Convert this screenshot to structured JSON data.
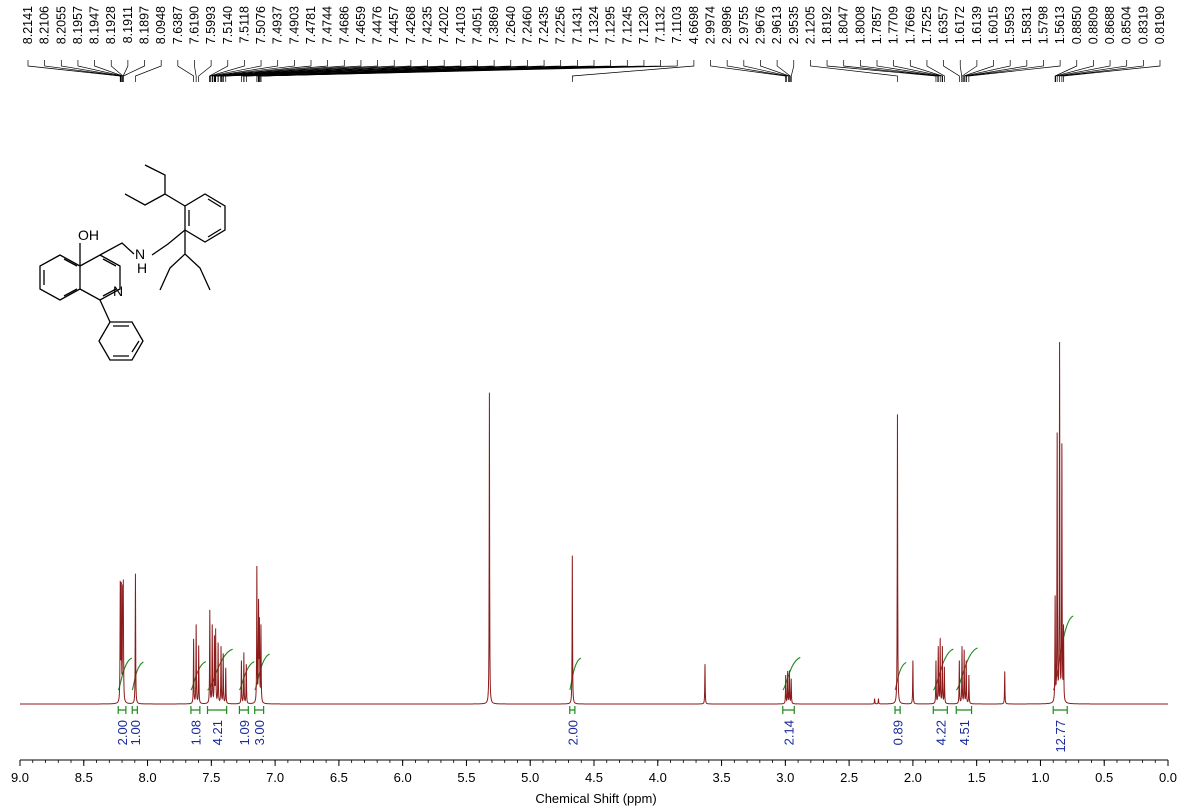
{
  "chart_data": {
    "type": "line",
    "xlabel": "Chemical Shift (ppm)",
    "ylabel": "",
    "xlim": [
      9.0,
      0.0
    ],
    "x_ticks": [
      "9.0",
      "8.5",
      "8.0",
      "7.5",
      "7.0",
      "6.5",
      "6.0",
      "5.5",
      "5.0",
      "4.5",
      "4.0",
      "3.5",
      "3.0",
      "2.5",
      "2.0",
      "1.5",
      "1.0",
      "0.5",
      "0.0"
    ],
    "grid": false,
    "colors": {
      "spectrum": "#8b1a1a",
      "integral": "#1e8a1e",
      "integral_label": "#1a2a9a"
    },
    "peak_labels": [
      {
        "ppm": 8.2141,
        "label": "8.2141"
      },
      {
        "ppm": 8.2106,
        "label": "8.2106"
      },
      {
        "ppm": 8.2055,
        "label": "8.2055"
      },
      {
        "ppm": 8.1957,
        "label": "8.1957"
      },
      {
        "ppm": 8.1947,
        "label": "8.1947"
      },
      {
        "ppm": 8.1928,
        "label": "8.1928"
      },
      {
        "ppm": 8.1911,
        "label": "8.1911"
      },
      {
        "ppm": 8.1897,
        "label": "8.1897"
      },
      {
        "ppm": 8.0948,
        "label": "8.0948"
      },
      {
        "ppm": 7.6387,
        "label": "7.6387"
      },
      {
        "ppm": 7.619,
        "label": "7.6190"
      },
      {
        "ppm": 7.5993,
        "label": "7.5993"
      },
      {
        "ppm": 7.514,
        "label": "7.5140"
      },
      {
        "ppm": 7.5118,
        "label": "7.5118"
      },
      {
        "ppm": 7.5076,
        "label": "7.5076"
      },
      {
        "ppm": 7.4937,
        "label": "7.4937"
      },
      {
        "ppm": 7.4903,
        "label": "7.4903"
      },
      {
        "ppm": 7.4781,
        "label": "7.4781"
      },
      {
        "ppm": 7.4744,
        "label": "7.4744"
      },
      {
        "ppm": 7.4686,
        "label": "7.4686"
      },
      {
        "ppm": 7.4659,
        "label": "7.4659"
      },
      {
        "ppm": 7.4476,
        "label": "7.4476"
      },
      {
        "ppm": 7.4457,
        "label": "7.4457"
      },
      {
        "ppm": 7.4268,
        "label": "7.4268"
      },
      {
        "ppm": 7.4235,
        "label": "7.4235"
      },
      {
        "ppm": 7.4202,
        "label": "7.4202"
      },
      {
        "ppm": 7.4103,
        "label": "7.4103"
      },
      {
        "ppm": 7.4051,
        "label": "7.4051"
      },
      {
        "ppm": 7.3869,
        "label": "7.3869"
      },
      {
        "ppm": 7.264,
        "label": "7.2640"
      },
      {
        "ppm": 7.246,
        "label": "7.2460"
      },
      {
        "ppm": 7.2435,
        "label": "7.2435"
      },
      {
        "ppm": 7.2256,
        "label": "7.2256"
      },
      {
        "ppm": 7.1431,
        "label": "7.1431"
      },
      {
        "ppm": 7.1324,
        "label": "7.1324"
      },
      {
        "ppm": 7.1295,
        "label": "7.1295"
      },
      {
        "ppm": 7.1245,
        "label": "7.1245"
      },
      {
        "ppm": 7.123,
        "label": "7.1230"
      },
      {
        "ppm": 7.1132,
        "label": "7.1132"
      },
      {
        "ppm": 7.1103,
        "label": "7.1103"
      },
      {
        "ppm": 4.6698,
        "label": "4.6698"
      },
      {
        "ppm": 2.9974,
        "label": "2.9974"
      },
      {
        "ppm": 2.9896,
        "label": "2.9896"
      },
      {
        "ppm": 2.9755,
        "label": "2.9755"
      },
      {
        "ppm": 2.9676,
        "label": "2.9676"
      },
      {
        "ppm": 2.9613,
        "label": "2.9613"
      },
      {
        "ppm": 2.9535,
        "label": "2.9535"
      },
      {
        "ppm": 2.1205,
        "label": "2.1205"
      },
      {
        "ppm": 1.8192,
        "label": "1.8192"
      },
      {
        "ppm": 1.8047,
        "label": "1.8047"
      },
      {
        "ppm": 1.8008,
        "label": "1.8008"
      },
      {
        "ppm": 1.7857,
        "label": "1.7857"
      },
      {
        "ppm": 1.7709,
        "label": "1.7709"
      },
      {
        "ppm": 1.7669,
        "label": "1.7669"
      },
      {
        "ppm": 1.7525,
        "label": "1.7525"
      },
      {
        "ppm": 1.6357,
        "label": "1.6357"
      },
      {
        "ppm": 1.6172,
        "label": "1.6172"
      },
      {
        "ppm": 1.6139,
        "label": "1.6139"
      },
      {
        "ppm": 1.6015,
        "label": "1.6015"
      },
      {
        "ppm": 1.5953,
        "label": "1.5953"
      },
      {
        "ppm": 1.5831,
        "label": "1.5831"
      },
      {
        "ppm": 1.5798,
        "label": "1.5798"
      },
      {
        "ppm": 1.5613,
        "label": "1.5613"
      },
      {
        "ppm": 0.885,
        "label": "0.8850"
      },
      {
        "ppm": 0.8809,
        "label": "0.8809"
      },
      {
        "ppm": 0.8688,
        "label": "0.8688"
      },
      {
        "ppm": 0.8504,
        "label": "0.8504"
      },
      {
        "ppm": 0.8319,
        "label": "0.8319"
      },
      {
        "ppm": 0.819,
        "label": "0.8190"
      }
    ],
    "integrals": [
      {
        "from": 8.23,
        "to": 8.17,
        "value": "2.00"
      },
      {
        "from": 8.12,
        "to": 8.08,
        "value": "1.00"
      },
      {
        "from": 7.66,
        "to": 7.59,
        "value": "1.08"
      },
      {
        "from": 7.53,
        "to": 7.38,
        "value": "4.21"
      },
      {
        "from": 7.28,
        "to": 7.21,
        "value": "1.09"
      },
      {
        "from": 7.16,
        "to": 7.09,
        "value": "3.00"
      },
      {
        "from": 4.69,
        "to": 4.65,
        "value": "2.00"
      },
      {
        "from": 3.02,
        "to": 2.93,
        "value": "2.14"
      },
      {
        "from": 2.14,
        "to": 2.1,
        "value": "0.89"
      },
      {
        "from": 1.84,
        "to": 1.73,
        "value": "4.22"
      },
      {
        "from": 1.66,
        "to": 1.54,
        "value": "4.51"
      },
      {
        "from": 0.9,
        "to": 0.79,
        "value": "12.77"
      }
    ],
    "peaks": [
      {
        "ppm": 8.214,
        "h": 0.34
      },
      {
        "ppm": 8.206,
        "h": 0.32
      },
      {
        "ppm": 8.195,
        "h": 0.33
      },
      {
        "ppm": 8.19,
        "h": 0.3
      },
      {
        "ppm": 8.095,
        "h": 0.36
      },
      {
        "ppm": 7.639,
        "h": 0.18
      },
      {
        "ppm": 7.619,
        "h": 0.22
      },
      {
        "ppm": 7.599,
        "h": 0.16
      },
      {
        "ppm": 7.512,
        "h": 0.26
      },
      {
        "ppm": 7.493,
        "h": 0.22
      },
      {
        "ppm": 7.476,
        "h": 0.18
      },
      {
        "ppm": 7.466,
        "h": 0.2
      },
      {
        "ppm": 7.447,
        "h": 0.17
      },
      {
        "ppm": 7.424,
        "h": 0.16
      },
      {
        "ppm": 7.407,
        "h": 0.14
      },
      {
        "ppm": 7.387,
        "h": 0.1
      },
      {
        "ppm": 7.264,
        "h": 0.12
      },
      {
        "ppm": 7.245,
        "h": 0.14
      },
      {
        "ppm": 7.226,
        "h": 0.11
      },
      {
        "ppm": 7.143,
        "h": 0.38
      },
      {
        "ppm": 7.13,
        "h": 0.28
      },
      {
        "ppm": 7.123,
        "h": 0.24
      },
      {
        "ppm": 7.111,
        "h": 0.22
      },
      {
        "ppm": 5.32,
        "h": 0.86
      },
      {
        "ppm": 4.67,
        "h": 0.41
      },
      {
        "ppm": 3.63,
        "h": 0.11
      },
      {
        "ppm": 2.997,
        "h": 0.08
      },
      {
        "ppm": 2.982,
        "h": 0.09
      },
      {
        "ppm": 2.968,
        "h": 0.09
      },
      {
        "ppm": 2.954,
        "h": 0.07
      },
      {
        "ppm": 2.3,
        "h": 0.015
      },
      {
        "ppm": 2.27,
        "h": 0.015
      },
      {
        "ppm": 2.121,
        "h": 0.8
      },
      {
        "ppm": 2.0,
        "h": 0.12
      },
      {
        "ppm": 1.819,
        "h": 0.12
      },
      {
        "ppm": 1.801,
        "h": 0.16
      },
      {
        "ppm": 1.786,
        "h": 0.18
      },
      {
        "ppm": 1.769,
        "h": 0.16
      },
      {
        "ppm": 1.753,
        "h": 0.1
      },
      {
        "ppm": 1.636,
        "h": 0.12
      },
      {
        "ppm": 1.615,
        "h": 0.16
      },
      {
        "ppm": 1.598,
        "h": 0.15
      },
      {
        "ppm": 1.582,
        "h": 0.12
      },
      {
        "ppm": 1.561,
        "h": 0.08
      },
      {
        "ppm": 1.28,
        "h": 0.09
      },
      {
        "ppm": 0.885,
        "h": 0.3
      },
      {
        "ppm": 0.869,
        "h": 0.75
      },
      {
        "ppm": 0.85,
        "h": 1.0
      },
      {
        "ppm": 0.832,
        "h": 0.72
      },
      {
        "ppm": 0.819,
        "h": 0.22
      }
    ]
  },
  "molecule": {
    "atom_labels": [
      "OH",
      "N",
      "H",
      "N"
    ]
  }
}
